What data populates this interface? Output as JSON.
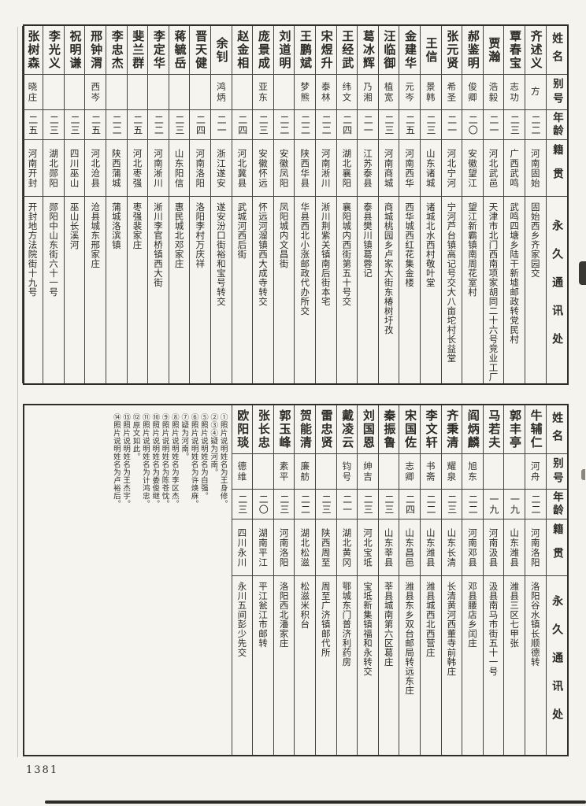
{
  "meta": {
    "description": "Scanned Chinese directory page (vertical right-to-left table of names, aliases, ages, native places and permanent mailing addresses)",
    "colors": {
      "paper": "#f5f3ee",
      "ink": "#2b2a26",
      "line": "#46433c"
    }
  },
  "page": {
    "number": "1381"
  },
  "header_labels": {
    "name": "姓名",
    "alias": "别号",
    "age": "年龄",
    "origin": "籍贯",
    "address": "永久通讯处"
  },
  "table1": {
    "entries": [
      {
        "name": "齐述义",
        "alias": "方",
        "age": "二二",
        "origin": "河南固始",
        "address": "固始西乡齐家园交"
      },
      {
        "name": "覃春宝",
        "alias": "志功",
        "age": "二三",
        "origin": "广西武鸣",
        "address": "武鸣四塘乡陆干新墟邮政转党民村"
      },
      {
        "name": "贾瀚",
        "alias": "浩毅",
        "age": "二一",
        "origin": "河北武邑",
        "address": "天津市北门西南项家胡同二十六号竞业工厂"
      },
      {
        "name": "郝鉴明",
        "alias": "俊卿",
        "age": "二〇",
        "origin": "安徽望江",
        "address": "望江新霸镇南周花室村"
      },
      {
        "name": "张元贤",
        "alias": "希圣",
        "age": "二一",
        "origin": "河北宁河",
        "address": "宁河芦台镇高记号交大八亩坨村长益堂"
      },
      {
        "name": "王信",
        "alias": "景韩",
        "age": "二三",
        "origin": "山东诸城",
        "address": "诸城北水西村敬叶堂"
      },
      {
        "name": "金建华",
        "alias": "元岑",
        "age": "二五",
        "origin": "河南西华",
        "address": "西华城西红花集金楼"
      },
      {
        "name": "汪临御",
        "alias": "植宽",
        "age": "二三",
        "origin": "河南商城",
        "address": "商城桃园乡卢家大街东椿树圩孜"
      },
      {
        "name": "葛冰辉",
        "alias": "乃湘",
        "age": "二一",
        "origin": "江苏泰县",
        "address": "泰县樊川镇葛蓉记"
      },
      {
        "name": "王经武",
        "alias": "纬文",
        "age": "二四",
        "origin": "湖北襄阳",
        "address": "襄阳城内西街第五十号交"
      },
      {
        "name": "宋煜升",
        "alias": "泰林",
        "age": "二二",
        "origin": "河南淅川",
        "address": "淅川荆紫关镇南后街本宅"
      },
      {
        "name": "王鹏斌",
        "alias": "梦熊",
        "age": "二二",
        "origin": "陕西华县",
        "address": "华县西北小涨邮政代办所交"
      },
      {
        "name": "刘道明",
        "alias": "",
        "age": "二二",
        "origin": "安徽凤阳",
        "address": "凤阳城内文昌街"
      },
      {
        "name": "庞景成",
        "alias": "亚东",
        "age": "二三",
        "origin": "安徽怀远",
        "address": "怀远河溜镇西大成寺转交"
      },
      {
        "name": "赵金相",
        "alias": "",
        "age": "二四",
        "origin": "河北冀县",
        "address": "武城河西后街"
      },
      {
        "name": "余钊",
        "alias": "鸿炳",
        "age": "二一",
        "origin": "浙江遂安",
        "address": "遂安汾口街裕和宝号转交"
      },
      {
        "name": "晋天健",
        "alias": "",
        "age": "二四",
        "origin": "河南洛阳",
        "address": "洛阳李村万庆祥"
      },
      {
        "name": "蒋毓岳",
        "alias": "",
        "age": "二三",
        "origin": "山东阳信",
        "address": "惠民城北邓家庄"
      },
      {
        "name": "李定华",
        "alias": "",
        "age": "二二",
        "origin": "河南淅川",
        "address": "淅川李官桥镇西大街"
      },
      {
        "name": "斐兰群",
        "alias": "",
        "age": "二五",
        "origin": "河北枣强",
        "address": "枣强裴家庄"
      },
      {
        "name": "李忠杰",
        "alias": "",
        "age": "二二",
        "origin": "陕西蒲城",
        "address": "蒲城洛滨镇"
      },
      {
        "name": "邢钟渭",
        "alias": "西岑",
        "age": "二五",
        "origin": "河北沧县",
        "address": "沧县城东邢家庄"
      },
      {
        "name": "祝明谦",
        "alias": "",
        "age": "二三",
        "origin": "四川巫山",
        "address": "巫山长溪河"
      },
      {
        "name": "李光义",
        "alias": "",
        "age": "二三",
        "origin": "湖北郧阳",
        "address": "郧阳中山东街六十一号"
      },
      {
        "name": "张树森",
        "alias": "晓庄",
        "age": "二五",
        "origin": "河南开封",
        "address": "开封地方法院街十九号"
      }
    ]
  },
  "table2": {
    "entries": [
      {
        "name": "牛辅仁",
        "alias": "河舟",
        "age": "二二",
        "origin": "河南洛阳",
        "address": "洛阳谷水镇长顺德转"
      },
      {
        "name": "郭丰亭",
        "alias": "",
        "age": "一九",
        "origin": "山东潍县",
        "address": "潍县三区七甲张"
      },
      {
        "name": "马若夫",
        "alias": "",
        "age": "一九",
        "origin": "河南汲县",
        "address": "汲县南马市街五十一号"
      },
      {
        "name": "阎炳麟",
        "alias": "旭东",
        "age": "二二",
        "origin": "河南邓县",
        "address": "邓县腰店乡闰庄"
      },
      {
        "name": "齐秉清",
        "alias": "耀泉",
        "age": "二三",
        "origin": "山东长清",
        "address": "长清黄河西董寺前韩庄"
      },
      {
        "name": "李文轩",
        "alias": "书斋",
        "age": "二二",
        "origin": "山东潍县",
        "address": "潍县城西北西营庄"
      },
      {
        "name": "宋国佐",
        "alias": "志卿",
        "age": "二四",
        "origin": "山东昌邑",
        "address": "潍县东乡双台邮局转远东庄"
      },
      {
        "name": "秦振鲁",
        "alias": "",
        "age": "二三",
        "origin": "山东莘县",
        "address": "莘县城南第六区葛庄"
      },
      {
        "name": "刘国恩",
        "alias": "绅吉",
        "age": "二三",
        "origin": "河北宝坻",
        "address": "宝坻新集镇福和永转交"
      },
      {
        "name": "戴凌云",
        "alias": "钧号",
        "age": "二一",
        "origin": "湖北黄冈",
        "address": "鄂城东门普济利药房"
      },
      {
        "name": "雷忠贤",
        "alias": "",
        "age": "二三",
        "origin": "陕西周至",
        "address": "周至广济镇邮代所"
      },
      {
        "name": "贺能清",
        "alias": "廉舫",
        "age": "二二",
        "origin": "湖北松滋",
        "address": "松滋米积台"
      },
      {
        "name": "郭玉峰",
        "alias": "素平",
        "age": "二三",
        "origin": "河南洛阳",
        "address": "洛阳西北潘家庄"
      },
      {
        "name": "张长忠",
        "alias": "",
        "age": "二〇",
        "origin": "湖南平江",
        "address": "平江瓮江市邮转"
      },
      {
        "name": "欧阳琰",
        "alias": "德维",
        "age": "二三",
        "origin": "四川永川",
        "address": "永川五间彭少先交"
      }
    ],
    "notes": [
      "①照片说明姓名为王身修。",
      "②③④疑为河南。",
      "⑤照片说明姓名为白强。",
      "⑥照片说明姓名为许焕庥。",
      "⑦疑为河南。",
      "⑧照片说明姓名为李区杰。",
      "⑨照片说明姓名为陈苍忱。",
      "⑩照片说明姓名为娄俊继。",
      "⑪照片说明姓名为计鸿忠。",
      "⑫原文如此。",
      "⑬照片说明姓名为王杰宇。",
      "⑭照片说明姓名为卢裕后。"
    ]
  }
}
